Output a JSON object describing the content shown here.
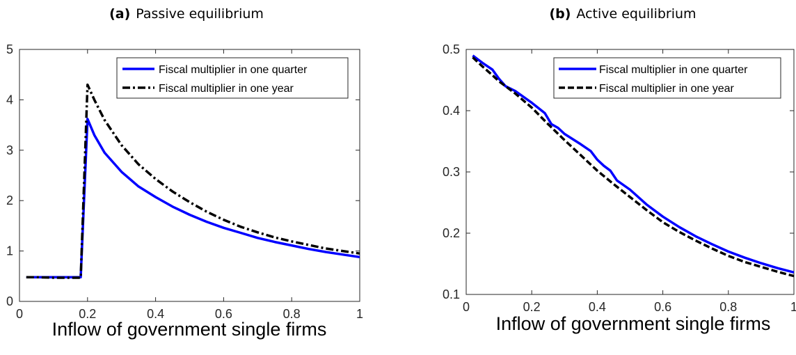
{
  "chart_data": [
    {
      "type": "line",
      "panel_label": "(a)",
      "title": "Passive equilibrium",
      "xlabel": "Inflow of government single firms",
      "ylabel": "",
      "xlim": [
        0,
        1
      ],
      "ylim": [
        0,
        5
      ],
      "xticks": [
        0,
        0.2,
        0.4,
        0.6,
        0.8,
        1
      ],
      "xtick_labels": [
        "0",
        "0.2",
        "0.4",
        "0.6",
        "0.8",
        "1"
      ],
      "yticks": [
        0,
        1,
        2,
        3,
        4,
        5
      ],
      "ytick_labels": [
        "0",
        "1",
        "2",
        "3",
        "4",
        "5"
      ],
      "legend_position": "top-right",
      "grid": false,
      "series": [
        {
          "name": "Fiscal multiplier in one quarter",
          "color": "#0000ff",
          "style": "solid",
          "x": [
            0.02,
            0.05,
            0.1,
            0.15,
            0.18,
            0.2,
            0.22,
            0.25,
            0.3,
            0.35,
            0.4,
            0.45,
            0.5,
            0.55,
            0.6,
            0.65,
            0.7,
            0.75,
            0.8,
            0.85,
            0.9,
            0.95,
            1.0
          ],
          "y": [
            0.48,
            0.48,
            0.48,
            0.48,
            0.48,
            3.62,
            3.3,
            2.95,
            2.57,
            2.28,
            2.07,
            1.88,
            1.72,
            1.58,
            1.46,
            1.36,
            1.26,
            1.18,
            1.11,
            1.04,
            0.98,
            0.93,
            0.88
          ]
        },
        {
          "name": "Fiscal multiplier in one year",
          "color": "#000000",
          "style": "dashdot",
          "x": [
            0.02,
            0.05,
            0.1,
            0.15,
            0.18,
            0.2,
            0.22,
            0.25,
            0.3,
            0.35,
            0.4,
            0.45,
            0.5,
            0.55,
            0.6,
            0.65,
            0.7,
            0.75,
            0.8,
            0.85,
            0.9,
            0.95,
            1.0
          ],
          "y": [
            0.48,
            0.48,
            0.47,
            0.47,
            0.47,
            4.3,
            4.0,
            3.6,
            3.1,
            2.72,
            2.43,
            2.18,
            1.97,
            1.78,
            1.62,
            1.48,
            1.37,
            1.27,
            1.19,
            1.12,
            1.05,
            1.0,
            0.95
          ]
        }
      ]
    },
    {
      "type": "line",
      "panel_label": "(b)",
      "title": "Active equilibrium",
      "xlabel": "Inflow of government single firms",
      "ylabel": "",
      "xlim": [
        0,
        1
      ],
      "ylim": [
        0.1,
        0.5
      ],
      "xticks": [
        0,
        0.2,
        0.4,
        0.6,
        0.8,
        1
      ],
      "xtick_labels": [
        "0",
        "0.2",
        "0.4",
        "0.6",
        "0.8",
        "1"
      ],
      "yticks": [
        0.1,
        0.2,
        0.3,
        0.4,
        0.5
      ],
      "ytick_labels": [
        "0.1",
        "0.2",
        "0.3",
        "0.4",
        "0.5"
      ],
      "legend_position": "top-right",
      "grid": false,
      "series": [
        {
          "name": "Fiscal multiplier in one quarter",
          "color": "#0000ff",
          "style": "solid",
          "x": [
            0.02,
            0.05,
            0.08,
            0.1,
            0.12,
            0.15,
            0.2,
            0.24,
            0.26,
            0.28,
            0.3,
            0.35,
            0.38,
            0.4,
            0.42,
            0.44,
            0.46,
            0.5,
            0.55,
            0.6,
            0.65,
            0.7,
            0.75,
            0.8,
            0.85,
            0.9,
            0.95,
            1.0
          ],
          "y": [
            0.49,
            0.478,
            0.467,
            0.452,
            0.44,
            0.432,
            0.413,
            0.396,
            0.378,
            0.372,
            0.362,
            0.345,
            0.334,
            0.32,
            0.31,
            0.302,
            0.286,
            0.271,
            0.247,
            0.227,
            0.21,
            0.195,
            0.182,
            0.17,
            0.16,
            0.151,
            0.143,
            0.136
          ]
        },
        {
          "name": "Fiscal multiplier in one year",
          "color": "#000000",
          "style": "dashed",
          "x": [
            0.02,
            0.05,
            0.08,
            0.1,
            0.12,
            0.15,
            0.2,
            0.25,
            0.3,
            0.35,
            0.4,
            0.45,
            0.5,
            0.55,
            0.6,
            0.65,
            0.7,
            0.75,
            0.8,
            0.85,
            0.9,
            0.95,
            1.0
          ],
          "y": [
            0.487,
            0.472,
            0.458,
            0.448,
            0.44,
            0.428,
            0.405,
            0.378,
            0.352,
            0.327,
            0.302,
            0.28,
            0.259,
            0.238,
            0.218,
            0.202,
            0.188,
            0.175,
            0.163,
            0.153,
            0.145,
            0.137,
            0.13
          ]
        }
      ]
    }
  ]
}
